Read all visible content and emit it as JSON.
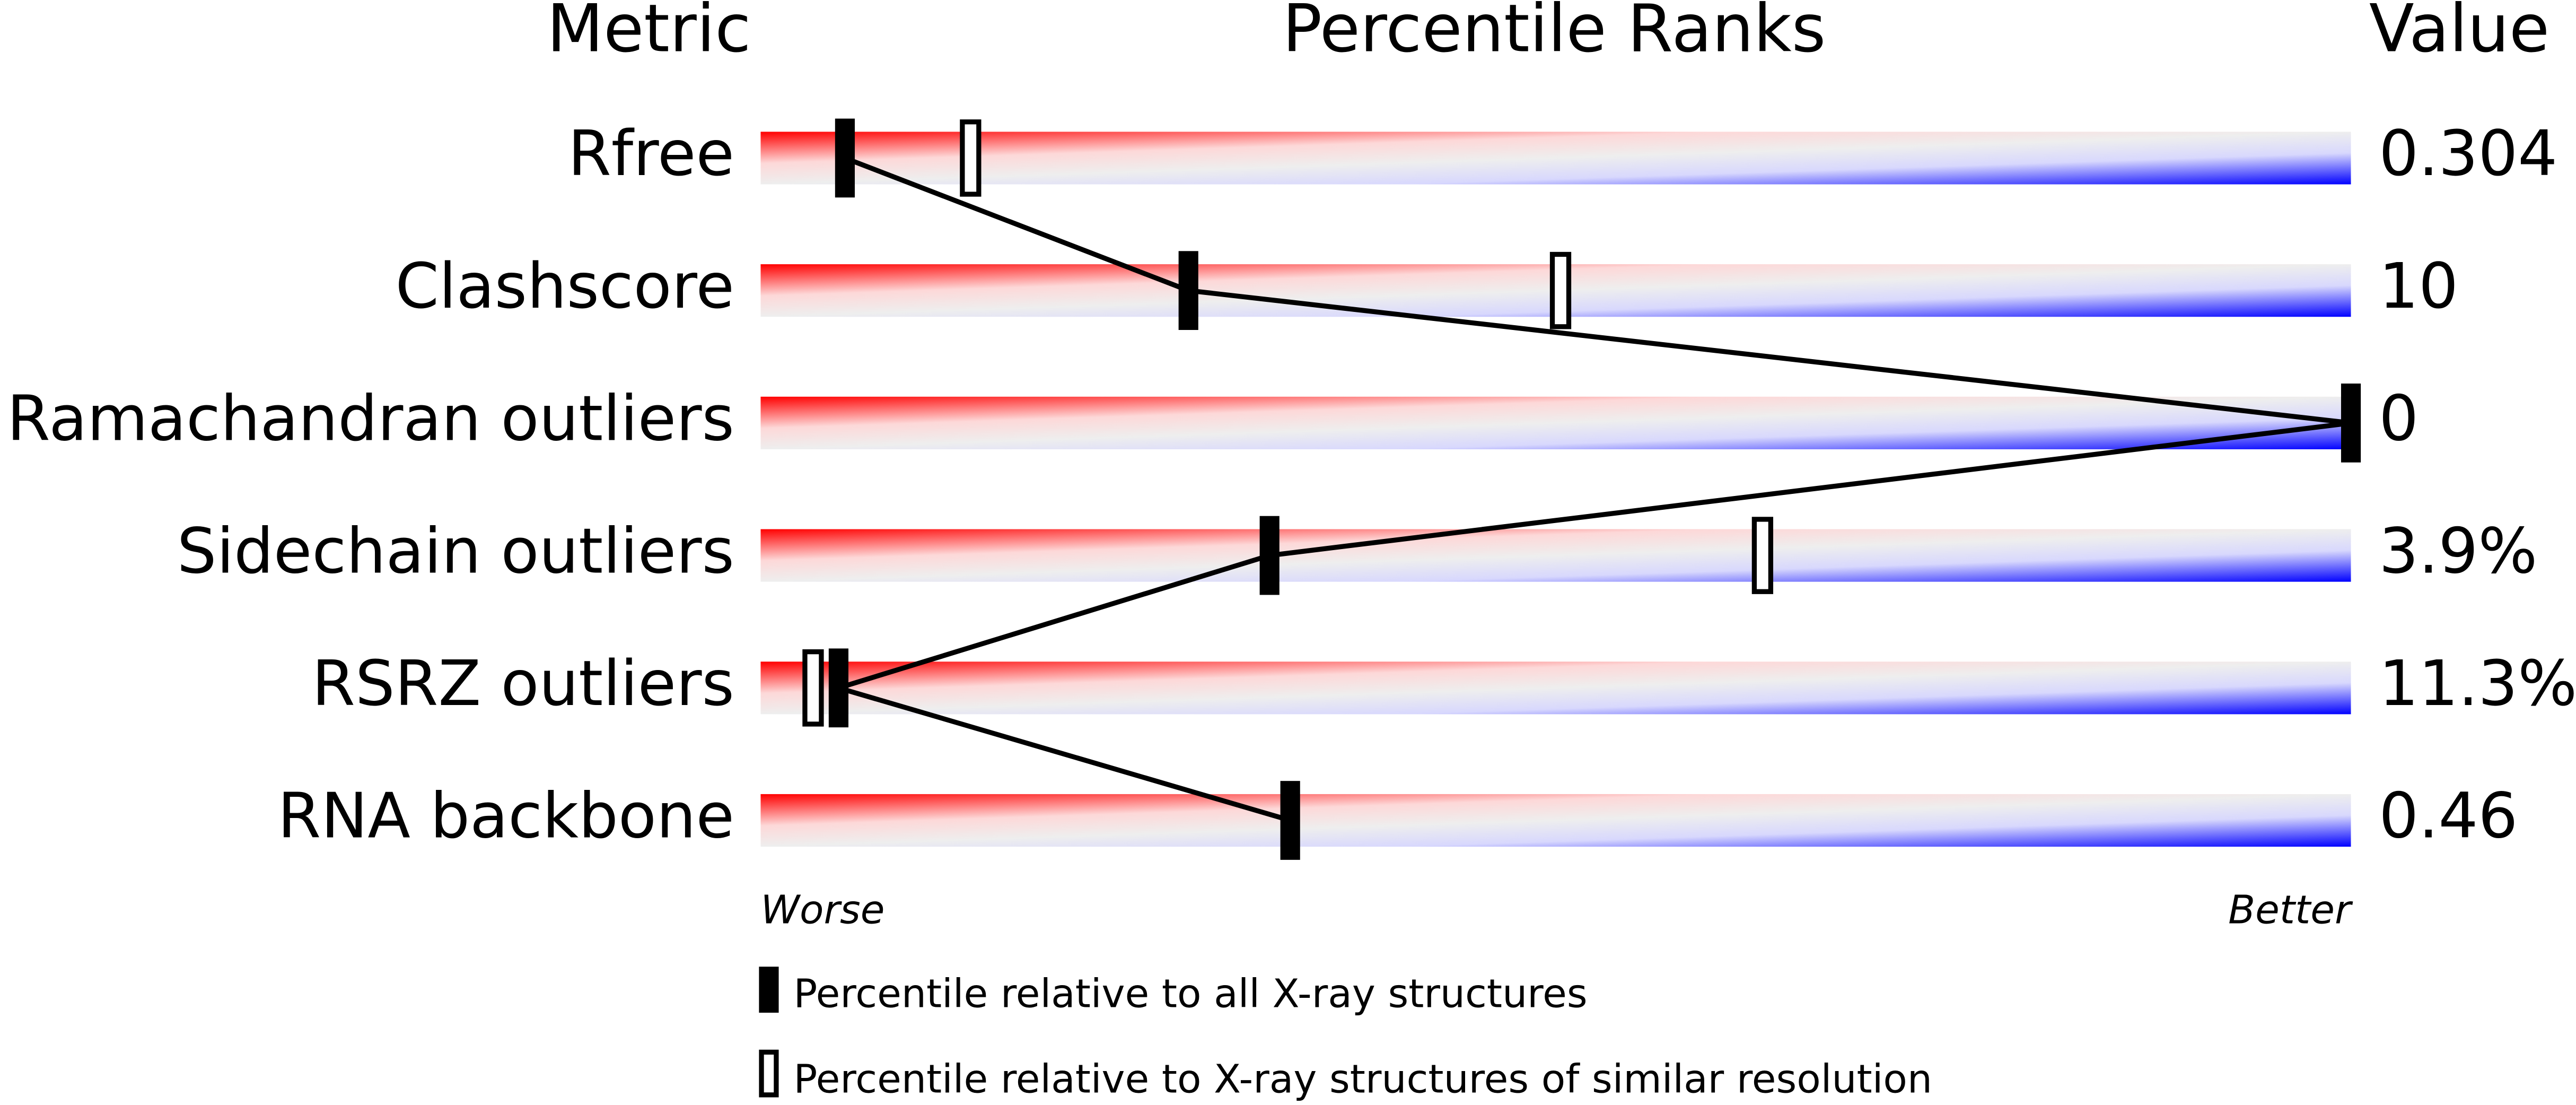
{
  "chart_data": {
    "type": "percentile",
    "headers": {
      "metric": "Metric",
      "ranks": "Percentile Ranks",
      "value": "Value"
    },
    "categories": [
      "Rfree",
      "Clashscore",
      "Ramachandran outliers",
      "Sidechain outliers",
      "RSRZ outliers",
      "RNA backbone"
    ],
    "metric_values": [
      "0.304",
      "10",
      "0",
      "3.9%",
      "11.3%",
      "0.46"
    ],
    "series": [
      {
        "name": "Percentile relative to all X-ray structures",
        "color": "#000000",
        "values": [
          5.3,
          26.9,
          100,
          32.0,
          4.9,
          33.3
        ]
      },
      {
        "name": "Percentile relative to X-ray structures of similar resolution",
        "color": "#ffffff",
        "values": [
          13.2,
          50.3,
          null,
          63.0,
          3.3,
          null
        ]
      }
    ],
    "xlim": [
      0,
      100
    ],
    "x_labels": {
      "low": "Worse",
      "high": "Better"
    }
  }
}
